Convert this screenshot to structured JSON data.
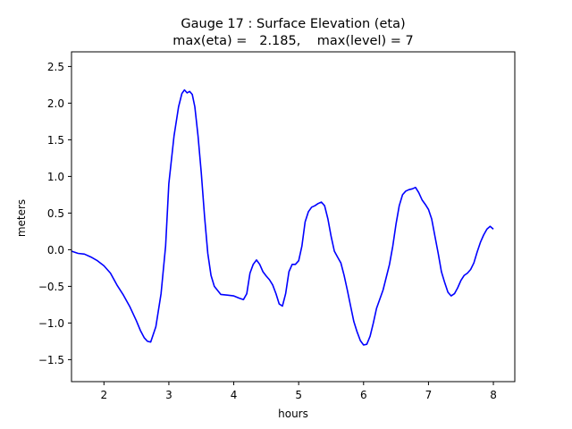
{
  "chart_data": {
    "type": "line",
    "title": "Gauge 17 : Surface Elevation (eta)",
    "subtitle": "max(eta) =   2.185,    max(level) = 7",
    "xlabel": "hours",
    "ylabel": "meters",
    "xlim": [
      1.5,
      8.33
    ],
    "ylim": [
      -1.8,
      2.7
    ],
    "xticks": [
      2,
      3,
      4,
      5,
      6,
      7,
      8
    ],
    "yticks": [
      -1.5,
      -1.0,
      -0.5,
      0.0,
      0.5,
      1.0,
      1.5,
      2.0,
      2.5
    ],
    "xtick_labels": [
      "2",
      "3",
      "4",
      "5",
      "6",
      "7",
      "8"
    ],
    "ytick_labels": [
      "−1.5",
      "−1.0",
      "−0.5",
      "0.0",
      "0.5",
      "1.0",
      "1.5",
      "2.0",
      "2.5"
    ],
    "grid": false,
    "series": [
      {
        "color": "#0000ff",
        "x": [
          1.5,
          1.6,
          1.7,
          1.8,
          1.9,
          2.0,
          2.1,
          2.2,
          2.3,
          2.4,
          2.5,
          2.56,
          2.62,
          2.67,
          2.72,
          2.8,
          2.88,
          2.95,
          3.0,
          3.08,
          3.15,
          3.2,
          3.24,
          3.28,
          3.32,
          3.36,
          3.4,
          3.45,
          3.5,
          3.55,
          3.6,
          3.65,
          3.7,
          3.8,
          3.9,
          4.0,
          4.08,
          4.15,
          4.2,
          4.25,
          4.3,
          4.35,
          4.4,
          4.45,
          4.5,
          4.55,
          4.6,
          4.65,
          4.7,
          4.75,
          4.8,
          4.85,
          4.9,
          4.95,
          5.0,
          5.05,
          5.1,
          5.15,
          5.2,
          5.25,
          5.3,
          5.35,
          5.4,
          5.45,
          5.5,
          5.55,
          5.6,
          5.65,
          5.7,
          5.75,
          5.8,
          5.85,
          5.9,
          5.95,
          6.0,
          6.05,
          6.1,
          6.15,
          6.2,
          6.3,
          6.4,
          6.45,
          6.5,
          6.55,
          6.6,
          6.65,
          6.7,
          6.75,
          6.8,
          6.85,
          6.9,
          6.95,
          7.0,
          7.05,
          7.1,
          7.15,
          7.2,
          7.25,
          7.3,
          7.35,
          7.4,
          7.45,
          7.5,
          7.55,
          7.6,
          7.65,
          7.7,
          7.75,
          7.8,
          7.85,
          7.9,
          7.95,
          8.0
        ],
        "y": [
          -0.02,
          -0.05,
          -0.06,
          -0.1,
          -0.15,
          -0.22,
          -0.32,
          -0.48,
          -0.62,
          -0.78,
          -0.97,
          -1.1,
          -1.2,
          -1.25,
          -1.26,
          -1.05,
          -0.6,
          0.05,
          0.9,
          1.55,
          1.95,
          2.13,
          2.18,
          2.14,
          2.16,
          2.12,
          1.95,
          1.55,
          1.05,
          0.45,
          -0.05,
          -0.35,
          -0.5,
          -0.61,
          -0.62,
          -0.63,
          -0.66,
          -0.68,
          -0.6,
          -0.32,
          -0.2,
          -0.14,
          -0.2,
          -0.3,
          -0.36,
          -0.41,
          -0.48,
          -0.6,
          -0.74,
          -0.77,
          -0.6,
          -0.3,
          -0.2,
          -0.2,
          -0.15,
          0.05,
          0.38,
          0.52,
          0.58,
          0.6,
          0.63,
          0.65,
          0.6,
          0.42,
          0.18,
          -0.02,
          -0.1,
          -0.18,
          -0.35,
          -0.55,
          -0.77,
          -0.98,
          -1.12,
          -1.24,
          -1.3,
          -1.29,
          -1.18,
          -1.0,
          -0.8,
          -0.55,
          -0.2,
          0.05,
          0.35,
          0.6,
          0.75,
          0.8,
          0.82,
          0.83,
          0.85,
          0.78,
          0.68,
          0.62,
          0.55,
          0.42,
          0.18,
          -0.05,
          -0.3,
          -0.45,
          -0.58,
          -0.63,
          -0.6,
          -0.52,
          -0.42,
          -0.35,
          -0.32,
          -0.27,
          -0.18,
          -0.03,
          0.1,
          0.2,
          0.28,
          0.32,
          0.28
        ]
      }
    ]
  }
}
